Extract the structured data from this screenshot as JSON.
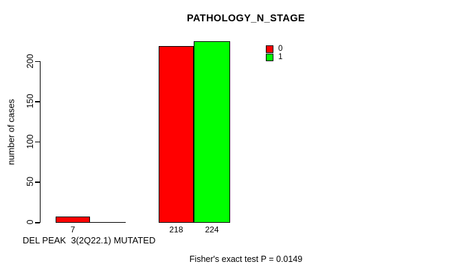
{
  "title": "PATHOLOGY_N_STAGE",
  "colors": {
    "series_0": "#ff0000",
    "series_1": "#00ff00",
    "axis": "#000000",
    "background": "#ffffff"
  },
  "chart_data": {
    "type": "bar",
    "title": "PATHOLOGY_N_STAGE",
    "ylabel": "number of cases",
    "xlabel": "DEL PEAK  3(2Q22.1) MUTATED",
    "ylim": [
      0,
      200
    ],
    "yticks": [
      0,
      50,
      100,
      150,
      200
    ],
    "grid": false,
    "legend_position": "top-right",
    "categories": [
      "DEL PEAK  3(2Q22.1) MUTATED",
      ""
    ],
    "series": [
      {
        "name": "0",
        "color": "#ff0000",
        "values": [
          7,
          218
        ]
      },
      {
        "name": "1",
        "color": "#00ff00",
        "values": [
          0,
          224
        ]
      }
    ],
    "bar_value_labels": [
      "7",
      "",
      "218",
      "224"
    ],
    "legend": [
      {
        "label": "0",
        "color": "#ff0000"
      },
      {
        "label": "1",
        "color": "#00ff00"
      }
    ],
    "annotation": "Fisher's exact test P = 0.0149"
  }
}
